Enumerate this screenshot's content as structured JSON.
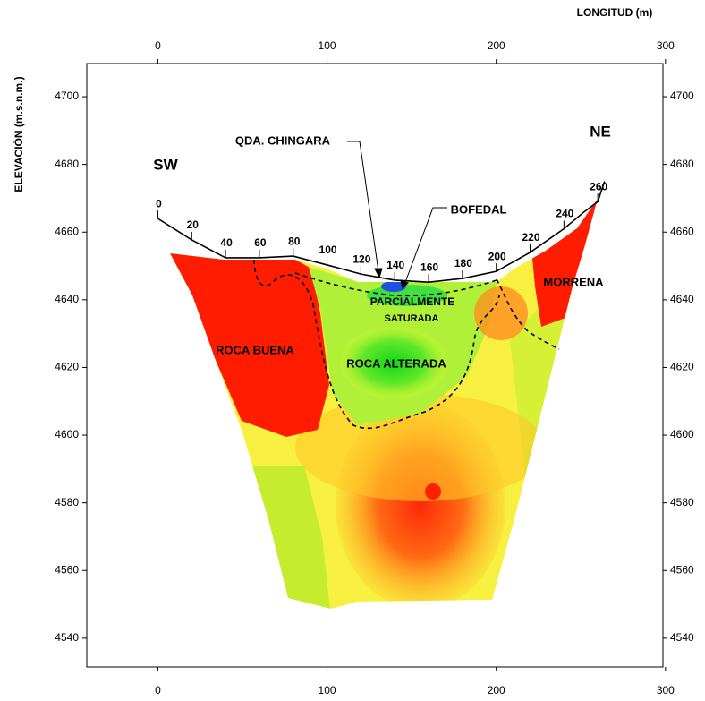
{
  "chart_data": {
    "type": "section",
    "xlabel": "LONGITUD (m)",
    "ylabel": "ELEVACIÓN (m.s.n.m.)",
    "xlim": [
      -42,
      298.5
    ],
    "ylim": [
      4531.5,
      4709.8
    ],
    "xticks": [
      0,
      100,
      200,
      300
    ],
    "yticks": [
      4540,
      4560,
      4580,
      4600,
      4620,
      4640,
      4660,
      4680,
      4700
    ],
    "profile": {
      "color": "#000000",
      "x": [
        0,
        20,
        40,
        60,
        80,
        100,
        120,
        140,
        160,
        180,
        200,
        220,
        240,
        252,
        260,
        264
      ],
      "y": [
        4664,
        4657.7,
        4652.4,
        4652.4,
        4652.9,
        4650.3,
        4647.6,
        4645.8,
        4645.2,
        4646.3,
        4648.4,
        4654,
        4661,
        4666,
        4669,
        4675
      ]
    },
    "stations": [
      0,
      20,
      40,
      60,
      80,
      100,
      120,
      140,
      160,
      180,
      200,
      220,
      240,
      260
    ],
    "annotations": [
      "SW",
      "NE",
      "QDA. CHINGARA",
      "BOFEDAL",
      "PARCIALMENTE",
      "SATURADA",
      "ROCA BUENA",
      "ROCA ALTERADA",
      "MORRENA"
    ]
  }
}
